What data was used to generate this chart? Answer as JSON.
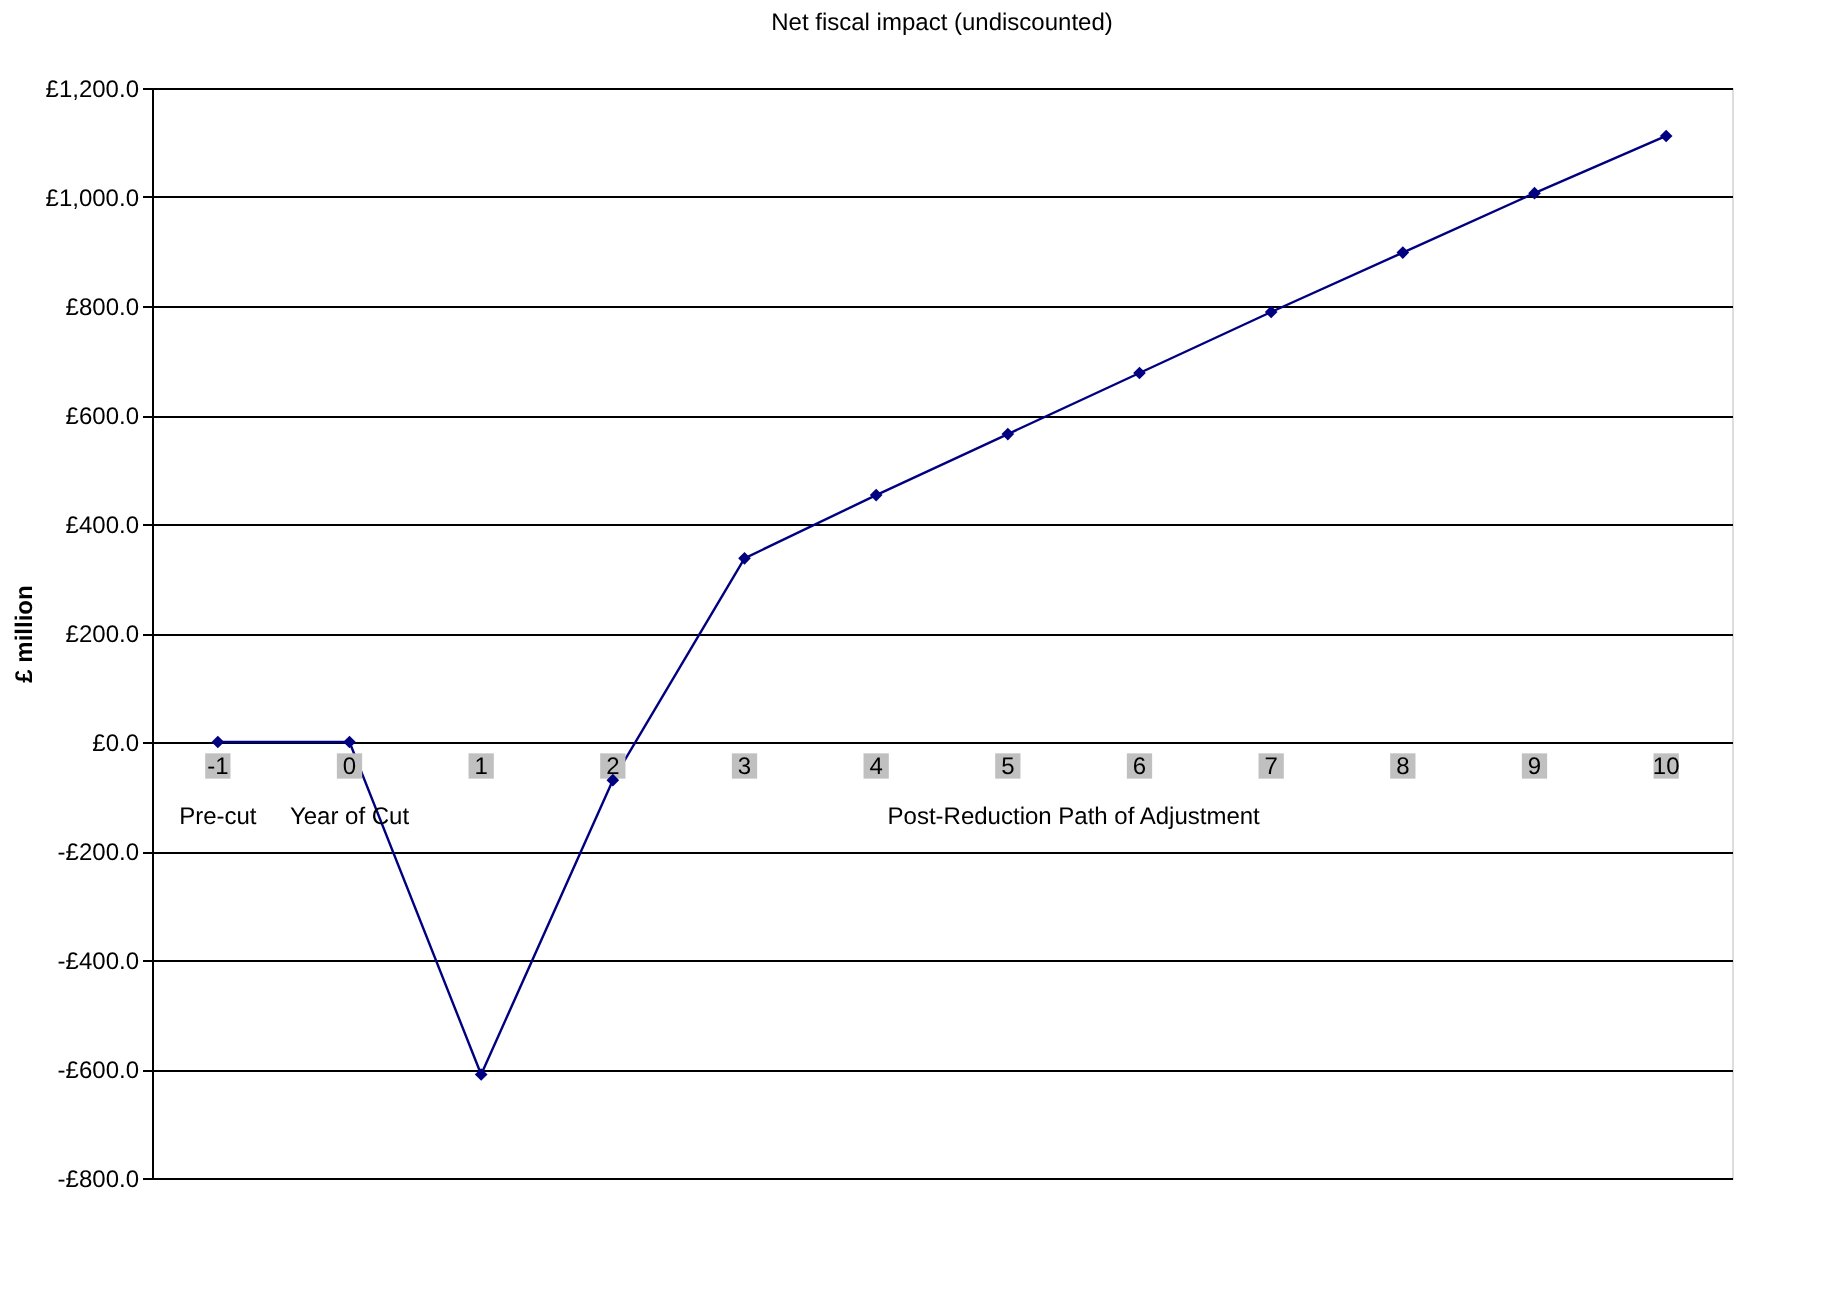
{
  "chart_data": {
    "type": "line",
    "title": "Net fiscal impact (undiscounted)",
    "ylabel": "£ million",
    "categories": [
      "-1",
      "0",
      "1",
      "2",
      "3",
      "4",
      "5",
      "6",
      "7",
      "8",
      "9",
      "10"
    ],
    "series": [
      {
        "color": "#000080",
        "values": [
          0,
          0,
          -610,
          -70,
          337,
          453,
          565,
          677,
          789,
          898,
          1007,
          1112
        ]
      }
    ],
    "ylim": [
      -800,
      1200
    ],
    "yticks": [
      {
        "value": -800,
        "label": "-£800.0"
      },
      {
        "value": -600,
        "label": "-£600.0"
      },
      {
        "value": -400,
        "label": "-£400.0"
      },
      {
        "value": -200,
        "label": "-£200.0"
      },
      {
        "value": 0,
        "label": "£0.0"
      },
      {
        "value": 200,
        "label": "£200.0"
      },
      {
        "value": 400,
        "label": "£400.0"
      },
      {
        "value": 600,
        "label": "£600.0"
      },
      {
        "value": 800,
        "label": "£800.0"
      },
      {
        "value": 1000,
        "label": "£1,000.0"
      },
      {
        "value": 1200,
        "label": "£1,200.0"
      }
    ],
    "annotations": [
      "Pre-cut",
      "Year of Cut",
      "Post-Reduction Path of Adjustment"
    ],
    "grid": "y",
    "marker": "diamond",
    "line_style": "solid",
    "legend": false
  }
}
